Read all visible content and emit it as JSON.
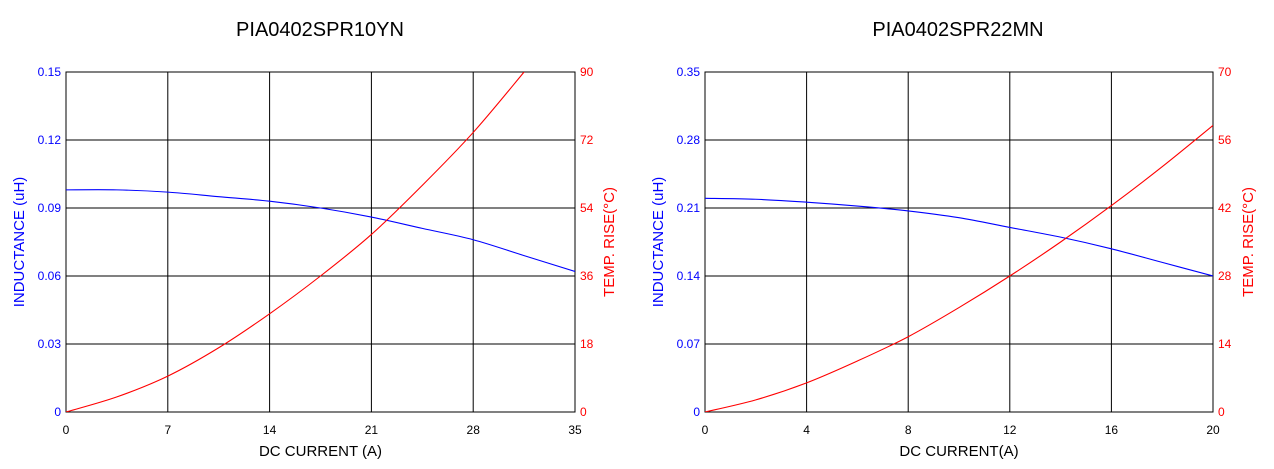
{
  "chart_data": [
    {
      "type": "line",
      "title": "PIA0402SPR10YN",
      "xlabel": "DC CURRENT (A)",
      "ylabel": "INDUCTANCE (uH)",
      "y2label": "TEMP. RISE(°C)",
      "xlim": [
        0,
        35
      ],
      "ylim": [
        0,
        0.15
      ],
      "y2lim": [
        0,
        90
      ],
      "x_ticks": [
        "0",
        "7",
        "14",
        "21",
        "28",
        "35"
      ],
      "y_ticks": [
        "0",
        "0.03",
        "0.06",
        "0.09",
        "0.12",
        "0.15"
      ],
      "y2_ticks": [
        "0",
        "18",
        "36",
        "54",
        "72",
        "90"
      ],
      "grid": true,
      "colors": {
        "inductance": "#0000ff",
        "temp": "#ff0000",
        "grid": "#000000",
        "frame": "#000000"
      },
      "series": [
        {
          "axis": "left",
          "x": [
            0,
            3.5,
            7,
            10.5,
            14,
            17.5,
            21,
            24.5,
            28,
            31.5,
            35
          ],
          "values": [
            0.098,
            0.098,
            0.097,
            0.095,
            0.093,
            0.09,
            0.086,
            0.081,
            0.076,
            0.069,
            0.062
          ]
        },
        {
          "axis": "right",
          "x": [
            0,
            3.5,
            7,
            10.5,
            14,
            17.5,
            21,
            24.5,
            28,
            31.5
          ],
          "values": [
            0,
            4,
            9.5,
            17,
            26,
            36,
            47,
            60,
            74,
            90
          ]
        }
      ]
    },
    {
      "type": "line",
      "title": "PIA0402SPR22MN",
      "xlabel": "DC CURRENT(A)",
      "ylabel": "INDUCTANCE (uH)",
      "y2label": "TEMP. RISE(°C)",
      "xlim": [
        0,
        20
      ],
      "ylim": [
        0,
        0.35
      ],
      "y2lim": [
        0,
        70
      ],
      "x_ticks": [
        "0",
        "4",
        "8",
        "12",
        "16",
        "20"
      ],
      "y_ticks": [
        "0",
        "0.07",
        "0.14",
        "0.21",
        "0.28",
        "0.35"
      ],
      "y2_ticks": [
        "0",
        "14",
        "28",
        "42",
        "56",
        "70"
      ],
      "grid": true,
      "colors": {
        "inductance": "#0000ff",
        "temp": "#ff0000",
        "grid": "#000000",
        "frame": "#000000"
      },
      "series": [
        {
          "axis": "left",
          "x": [
            0,
            2,
            4,
            6,
            8,
            10,
            12,
            14,
            16,
            18,
            20
          ],
          "values": [
            0.22,
            0.219,
            0.216,
            0.212,
            0.207,
            0.2,
            0.19,
            0.18,
            0.168,
            0.154,
            0.14
          ]
        },
        {
          "axis": "right",
          "x": [
            0,
            2,
            4,
            6,
            8,
            10,
            12,
            14,
            16,
            18,
            20
          ],
          "values": [
            0,
            2.5,
            6,
            10.5,
            15.5,
            21.5,
            28,
            35,
            42.5,
            50.5,
            59
          ]
        }
      ]
    }
  ]
}
